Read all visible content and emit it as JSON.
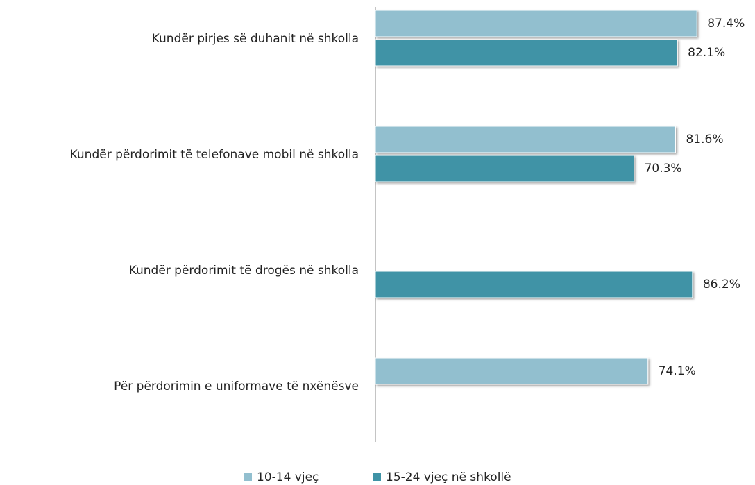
{
  "chart_data": {
    "type": "barh",
    "categories": [
      "Kundër pirjes së duhanit në shkolla",
      "Kundër përdorimit të telefonave mobil në shkolla",
      "Kundër përdorimit të drogës në shkolla",
      "Për përdorimin e uniformave të nxënësve"
    ],
    "xlim": [
      0,
      100
    ],
    "series": [
      {
        "name": "10-14 vjeç",
        "color": "#92bfcf",
        "values": [
          87.4,
          81.6,
          null,
          74.1
        ],
        "value_labels": [
          "87.4%",
          "81.6%",
          null,
          "74.1%"
        ]
      },
      {
        "name": "15-24 vjeç në shkollë",
        "color": "#3f93a6",
        "values": [
          82.1,
          70.3,
          86.2,
          null
        ],
        "value_labels": [
          "82.1%",
          "70.3%",
          "86.2%",
          null
        ]
      }
    ],
    "legend": "bottom"
  }
}
